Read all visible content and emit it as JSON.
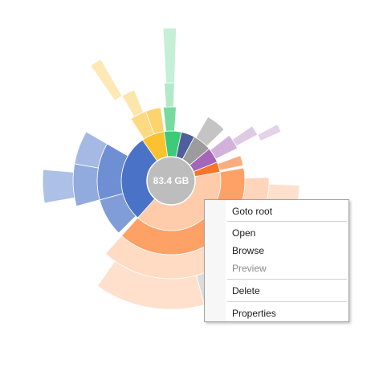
{
  "center": {
    "label": "83.4 GB"
  },
  "context_menu": {
    "items": [
      {
        "name": "goto-root-item",
        "label": "Goto root",
        "enabled": true
      },
      {
        "name": "open-item",
        "label": "Open",
        "enabled": true
      },
      {
        "name": "browse-item",
        "label": "Browse",
        "enabled": true
      },
      {
        "name": "preview-item",
        "label": "Preview",
        "enabled": false
      },
      {
        "name": "delete-item",
        "label": "Delete",
        "enabled": true
      },
      {
        "name": "properties-item",
        "label": "Properties",
        "enabled": true
      }
    ]
  },
  "colors": {
    "orange": "#fe9757",
    "yellow": "#fbc12f",
    "blue": "#4a73c8",
    "green": "#3ecb78",
    "navy": "#4e5f9c",
    "gray": "#9c9c9c",
    "purple": "#a466b8",
    "deep_orange": "#f5762a",
    "center": "#bdbdbd"
  }
}
